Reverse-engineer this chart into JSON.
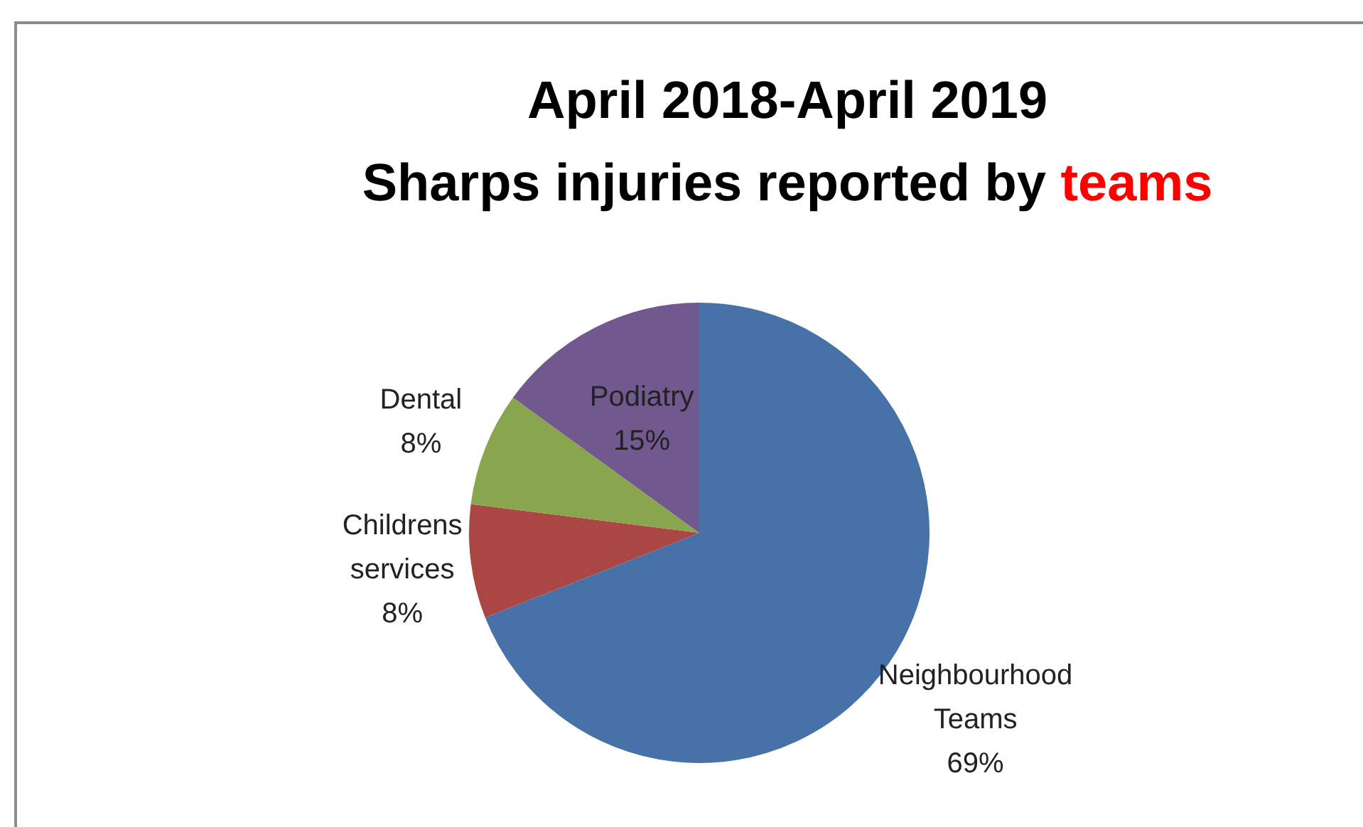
{
  "chart_data": {
    "type": "pie",
    "title": "April 2018-April 2019\nSharps injuries reported by teams",
    "categories": [
      "Neighbourhood Teams",
      "Childrens services",
      "Dental",
      "Podiatry"
    ],
    "values": [
      69,
      8,
      8,
      15
    ],
    "colors": [
      "#4672a8",
      "#aa4643",
      "#89a54e",
      "#71588f"
    ],
    "value_labels": [
      "69%",
      "8%",
      "8%",
      "15%"
    ],
    "legend": false
  }
}
